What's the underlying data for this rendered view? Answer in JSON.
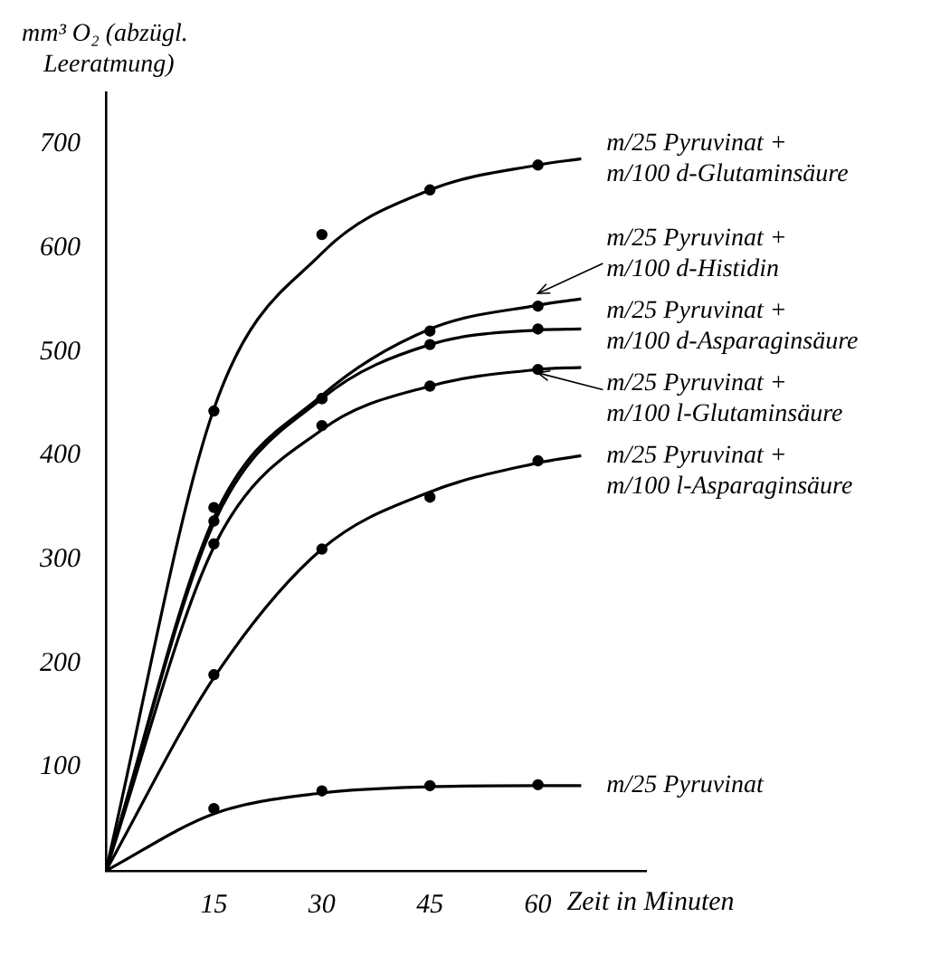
{
  "chart_data": {
    "type": "line",
    "ylabel": "mm³ O₂ (abzügl. Leeratmung)",
    "xlabel": "Zeit in Minuten",
    "xlim": [
      0,
      75
    ],
    "ylim": [
      0,
      750
    ],
    "xticks": [
      15,
      30,
      45,
      60
    ],
    "yticks": [
      100,
      200,
      300,
      400,
      500,
      600,
      700
    ],
    "grid": false,
    "legend": "right",
    "series": [
      {
        "type": "line",
        "name": "m/25 Pyruvinat + m/100 d-Glutaminsäure",
        "color": "#000000",
        "marker": "none",
        "x": [
          0,
          15,
          30,
          45,
          60,
          66
        ],
        "values": [
          0,
          445,
          595,
          656,
          680,
          686
        ]
      },
      {
        "type": "line",
        "name": "m/25 Pyruvinat + m/100 d-Histidin",
        "color": "#000000",
        "marker": "none",
        "x": [
          0,
          15,
          30,
          45,
          60,
          66
        ],
        "values": [
          0,
          340,
          458,
          522,
          545,
          551
        ]
      },
      {
        "type": "line",
        "name": "m/25 Pyruvinat + m/100 d-Asparaginsäure",
        "color": "#000000",
        "marker": "none",
        "x": [
          0,
          15,
          30,
          45,
          60,
          66
        ],
        "values": [
          0,
          335,
          455,
          507,
          521,
          522
        ]
      },
      {
        "type": "line",
        "name": "m/25 Pyruvinat + m/100 l-Glutaminsäure",
        "color": "#000000",
        "marker": "none",
        "x": [
          0,
          15,
          30,
          45,
          60,
          66
        ],
        "values": [
          0,
          312,
          425,
          467,
          483,
          485
        ]
      },
      {
        "type": "line",
        "name": "m/25 Pyruvinat + m/100 l-Asparaginsäure",
        "color": "#000000",
        "marker": "none",
        "x": [
          0,
          15,
          30,
          45,
          60,
          66
        ],
        "values": [
          0,
          186,
          310,
          365,
          393,
          400
        ]
      },
      {
        "type": "line",
        "name": "m/25 Pyruvinat",
        "color": "#000000",
        "marker": "none",
        "x": [
          0,
          15,
          30,
          45,
          60,
          66
        ],
        "values": [
          0,
          55,
          75,
          81,
          82,
          82
        ]
      },
      {
        "type": "scatter",
        "color": "#000000",
        "marker": "circle",
        "x": [
          15,
          30,
          45,
          60
        ],
        "values": [
          443,
          613,
          656,
          680
        ]
      },
      {
        "type": "scatter",
        "color": "#000000",
        "marker": "circle",
        "x": [
          15,
          30,
          45,
          60
        ],
        "values": [
          350,
          455,
          520,
          544
        ]
      },
      {
        "type": "scatter",
        "color": "#000000",
        "marker": "circle",
        "x": [
          15,
          30,
          45,
          60
        ],
        "values": [
          337,
          455,
          507,
          522
        ]
      },
      {
        "type": "scatter",
        "color": "#000000",
        "marker": "circle",
        "x": [
          15,
          30,
          45,
          60
        ],
        "values": [
          315,
          429,
          467,
          483
        ]
      },
      {
        "type": "scatter",
        "color": "#000000",
        "marker": "circle",
        "x": [
          15,
          30,
          45,
          60
        ],
        "values": [
          189,
          310,
          360,
          395
        ]
      },
      {
        "type": "scatter",
        "color": "#000000",
        "marker": "circle",
        "x": [
          15,
          30,
          45,
          60
        ],
        "values": [
          60,
          77,
          82,
          83
        ]
      }
    ]
  }
}
